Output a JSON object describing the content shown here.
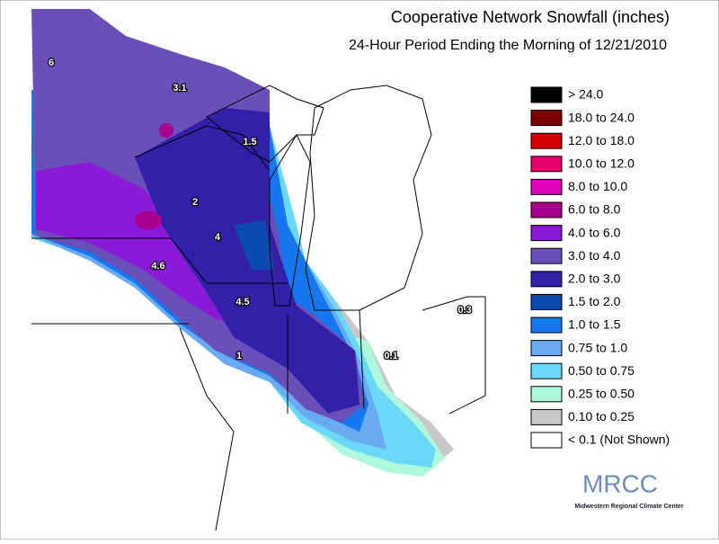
{
  "header": {
    "title": "Cooperative Network Snowfall (inches)",
    "subtitle": "24-Hour Period Ending the Morning of 12/21/2010"
  },
  "legend": [
    {
      "label": "> 24.0",
      "color": "#000000"
    },
    {
      "label": "18.0 to 24.0",
      "color": "#7a0000"
    },
    {
      "label": "12.0 to 18.0",
      "color": "#d40000"
    },
    {
      "label": "10.0 to 12.0",
      "color": "#e8006a"
    },
    {
      "label": "8.0 to 10.0",
      "color": "#e000c0"
    },
    {
      "label": "6.0 to 8.0",
      "color": "#a8008c"
    },
    {
      "label": "4.0 to 6.0",
      "color": "#8a1ad8"
    },
    {
      "label": "3.0 to 4.0",
      "color": "#6a4fb8"
    },
    {
      "label": "2.0 to 3.0",
      "color": "#3320a8"
    },
    {
      "label": "1.5 to 2.0",
      "color": "#0a4bb0"
    },
    {
      "label": "1.0 to 1.5",
      "color": "#1478f0"
    },
    {
      "label": "0.75 to 1.0",
      "color": "#6aaaf0"
    },
    {
      "label": "0.50 to 0.75",
      "color": "#6ad8f8"
    },
    {
      "label": "0.25 to 0.50",
      "color": "#aef8dc"
    },
    {
      "label": "0.10 to 0.25",
      "color": "#c8c8c8"
    },
    {
      "label": "< 0.1 (Not Shown)",
      "color": "#ffffff"
    }
  ],
  "map_labels": [
    6,
    3.1,
    1.5,
    2,
    4,
    4.6,
    4.5,
    1,
    0.1,
    0.3
  ],
  "logo": {
    "name": "MRCC",
    "subtitle": "Midwestern Regional Climate Center"
  }
}
